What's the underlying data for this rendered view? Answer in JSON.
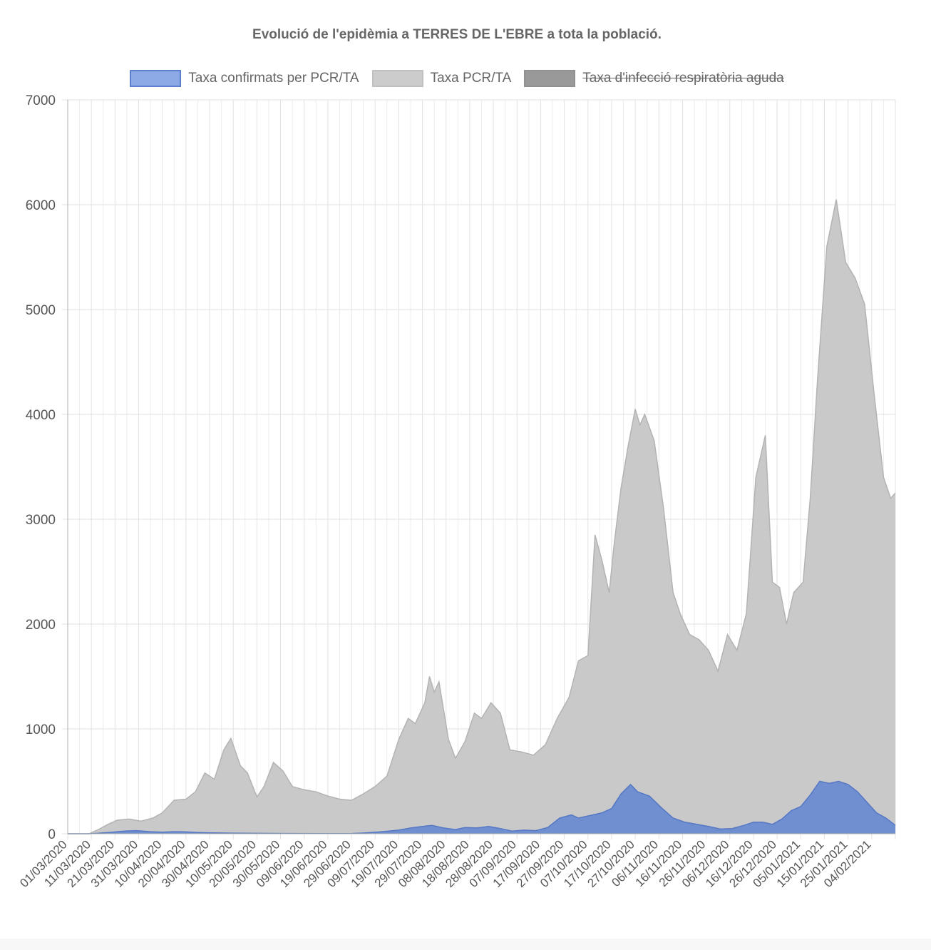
{
  "chart_data": {
    "type": "area",
    "title": "Evolució de l'epidèmia a TERRES DE L'EBRE a tota la població.",
    "xlabel": "",
    "ylabel": "",
    "ylim": [
      0,
      7000
    ],
    "yticks": [
      "0",
      "1000",
      "2000",
      "3000",
      "4000",
      "5000",
      "6000",
      "7000"
    ],
    "grid": true,
    "legend_position": "top",
    "x_start": "01/03/2020",
    "x_end": "14/02/2021",
    "x_tick_labels": [
      "01/03/2020",
      "11/03/2020",
      "21/03/2020",
      "31/03/2020",
      "10/04/2020",
      "20/04/2020",
      "30/04/2020",
      "10/05/2020",
      "20/05/2020",
      "30/05/2020",
      "09/06/2020",
      "19/06/2020",
      "29/06/2020",
      "09/07/2020",
      "19/07/2020",
      "29/07/2020",
      "08/08/2020",
      "18/08/2020",
      "28/08/2020",
      "07/09/2020",
      "17/09/2020",
      "27/09/2020",
      "07/10/2020",
      "17/10/2020",
      "27/10/2020",
      "06/11/2020",
      "16/11/2020",
      "26/11/2020",
      "06/12/2020",
      "16/12/2020",
      "26/12/2020",
      "05/01/2021",
      "15/01/2021",
      "25/01/2021",
      "04/02/2021"
    ],
    "series": [
      {
        "name": "Taxa confirmats per PCR/TA",
        "color": "#6b8fd6",
        "fill": "#6f8fd1",
        "stroke": "#5577c4",
        "hidden": false,
        "points": [
          [
            "01/03/2020",
            0
          ],
          [
            "10/03/2020",
            0
          ],
          [
            "14/03/2020",
            5
          ],
          [
            "20/03/2020",
            15
          ],
          [
            "25/03/2020",
            25
          ],
          [
            "30/03/2020",
            30
          ],
          [
            "05/04/2020",
            20
          ],
          [
            "10/04/2020",
            15
          ],
          [
            "15/04/2020",
            20
          ],
          [
            "20/04/2020",
            18
          ],
          [
            "25/04/2020",
            12
          ],
          [
            "01/05/2020",
            8
          ],
          [
            "10/05/2020",
            6
          ],
          [
            "20/05/2020",
            4
          ],
          [
            "01/06/2020",
            3
          ],
          [
            "15/06/2020",
            2
          ],
          [
            "29/06/2020",
            3
          ],
          [
            "05/07/2020",
            8
          ],
          [
            "12/07/2020",
            20
          ],
          [
            "19/07/2020",
            35
          ],
          [
            "24/07/2020",
            55
          ],
          [
            "29/07/2020",
            70
          ],
          [
            "02/08/2020",
            80
          ],
          [
            "07/08/2020",
            55
          ],
          [
            "12/08/2020",
            40
          ],
          [
            "16/08/2020",
            60
          ],
          [
            "21/08/2020",
            55
          ],
          [
            "26/08/2020",
            70
          ],
          [
            "31/08/2020",
            50
          ],
          [
            "05/09/2020",
            25
          ],
          [
            "10/09/2020",
            35
          ],
          [
            "15/09/2020",
            30
          ],
          [
            "20/09/2020",
            60
          ],
          [
            "25/09/2020",
            150
          ],
          [
            "30/09/2020",
            180
          ],
          [
            "03/10/2020",
            150
          ],
          [
            "08/10/2020",
            175
          ],
          [
            "13/10/2020",
            200
          ],
          [
            "17/10/2020",
            240
          ],
          [
            "21/10/2020",
            380
          ],
          [
            "25/10/2020",
            470
          ],
          [
            "28/10/2020",
            400
          ],
          [
            "02/11/2020",
            360
          ],
          [
            "07/11/2020",
            250
          ],
          [
            "12/11/2020",
            150
          ],
          [
            "17/11/2020",
            110
          ],
          [
            "22/11/2020",
            90
          ],
          [
            "27/11/2020",
            70
          ],
          [
            "02/12/2020",
            45
          ],
          [
            "07/12/2020",
            50
          ],
          [
            "12/12/2020",
            80
          ],
          [
            "16/12/2020",
            110
          ],
          [
            "20/12/2020",
            110
          ],
          [
            "24/12/2020",
            90
          ],
          [
            "28/12/2020",
            140
          ],
          [
            "01/01/2021",
            220
          ],
          [
            "05/01/2021",
            260
          ],
          [
            "09/01/2021",
            370
          ],
          [
            "13/01/2021",
            500
          ],
          [
            "17/01/2021",
            480
          ],
          [
            "21/01/2021",
            500
          ],
          [
            "25/01/2021",
            470
          ],
          [
            "29/01/2021",
            400
          ],
          [
            "02/02/2021",
            300
          ],
          [
            "06/02/2021",
            200
          ],
          [
            "10/02/2021",
            150
          ],
          [
            "14/02/2021",
            80
          ]
        ]
      },
      {
        "name": "Taxa PCR/TA",
        "color": "#c9c9c9",
        "fill": "#c9c9c9",
        "stroke": "#b3b3b3",
        "hidden": false,
        "points": [
          [
            "01/03/2020",
            0
          ],
          [
            "10/03/2020",
            0
          ],
          [
            "14/03/2020",
            40
          ],
          [
            "18/03/2020",
            90
          ],
          [
            "22/03/2020",
            130
          ],
          [
            "27/03/2020",
            140
          ],
          [
            "01/04/2020",
            120
          ],
          [
            "06/04/2020",
            150
          ],
          [
            "10/04/2020",
            200
          ],
          [
            "15/04/2020",
            320
          ],
          [
            "20/04/2020",
            330
          ],
          [
            "24/04/2020",
            400
          ],
          [
            "28/04/2020",
            580
          ],
          [
            "02/05/2020",
            520
          ],
          [
            "06/05/2020",
            800
          ],
          [
            "09/05/2020",
            910
          ],
          [
            "13/05/2020",
            650
          ],
          [
            "16/05/2020",
            580
          ],
          [
            "20/05/2020",
            350
          ],
          [
            "23/05/2020",
            450
          ],
          [
            "27/05/2020",
            680
          ],
          [
            "31/05/2020",
            600
          ],
          [
            "04/06/2020",
            450
          ],
          [
            "09/06/2020",
            420
          ],
          [
            "14/06/2020",
            400
          ],
          [
            "19/06/2020",
            360
          ],
          [
            "24/06/2020",
            330
          ],
          [
            "29/06/2020",
            320
          ],
          [
            "04/07/2020",
            380
          ],
          [
            "09/07/2020",
            450
          ],
          [
            "14/07/2020",
            550
          ],
          [
            "19/07/2020",
            900
          ],
          [
            "23/07/2020",
            1100
          ],
          [
            "26/07/2020",
            1050
          ],
          [
            "30/07/2020",
            1250
          ],
          [
            "01/08/2020",
            1500
          ],
          [
            "03/08/2020",
            1350
          ],
          [
            "05/08/2020",
            1450
          ],
          [
            "09/08/2020",
            900
          ],
          [
            "12/08/2020",
            720
          ],
          [
            "16/08/2020",
            880
          ],
          [
            "20/08/2020",
            1150
          ],
          [
            "23/08/2020",
            1100
          ],
          [
            "27/08/2020",
            1250
          ],
          [
            "31/08/2020",
            1150
          ],
          [
            "04/09/2020",
            800
          ],
          [
            "09/09/2020",
            780
          ],
          [
            "14/09/2020",
            750
          ],
          [
            "19/09/2020",
            850
          ],
          [
            "24/09/2020",
            1100
          ],
          [
            "29/09/2020",
            1300
          ],
          [
            "03/10/2020",
            1650
          ],
          [
            "07/10/2020",
            1700
          ],
          [
            "10/10/2020",
            2850
          ],
          [
            "13/10/2020",
            2600
          ],
          [
            "16/10/2020",
            2300
          ],
          [
            "18/10/2020",
            2750
          ],
          [
            "21/10/2020",
            3300
          ],
          [
            "24/10/2020",
            3700
          ],
          [
            "27/10/2020",
            4050
          ],
          [
            "29/10/2020",
            3900
          ],
          [
            "31/10/2020",
            4000
          ],
          [
            "04/11/2020",
            3750
          ],
          [
            "08/11/2020",
            3100
          ],
          [
            "12/11/2020",
            2300
          ],
          [
            "15/11/2020",
            2100
          ],
          [
            "19/11/2020",
            1900
          ],
          [
            "23/11/2020",
            1850
          ],
          [
            "27/11/2020",
            1750
          ],
          [
            "01/12/2020",
            1550
          ],
          [
            "05/12/2020",
            1900
          ],
          [
            "09/12/2020",
            1750
          ],
          [
            "13/12/2020",
            2100
          ],
          [
            "17/12/2020",
            3400
          ],
          [
            "21/12/2020",
            3800
          ],
          [
            "24/12/2020",
            2400
          ],
          [
            "27/12/2020",
            2350
          ],
          [
            "30/12/2020",
            2000
          ],
          [
            "02/01/2021",
            2300
          ],
          [
            "06/01/2021",
            2400
          ],
          [
            "09/01/2021",
            3200
          ],
          [
            "12/01/2021",
            4300
          ],
          [
            "16/01/2021",
            5600
          ],
          [
            "20/01/2021",
            6050
          ],
          [
            "24/01/2021",
            5450
          ],
          [
            "28/01/2021",
            5300
          ],
          [
            "01/02/2021",
            5050
          ],
          [
            "05/02/2021",
            4200
          ],
          [
            "09/02/2021",
            3400
          ],
          [
            "12/02/2021",
            3200
          ],
          [
            "14/02/2021",
            3250
          ]
        ]
      },
      {
        "name": "Taxa d'infecció respiratòria aguda",
        "color": "#969696",
        "fill": "#969696",
        "stroke": "#8a8a8a",
        "hidden": true,
        "points": []
      }
    ]
  }
}
